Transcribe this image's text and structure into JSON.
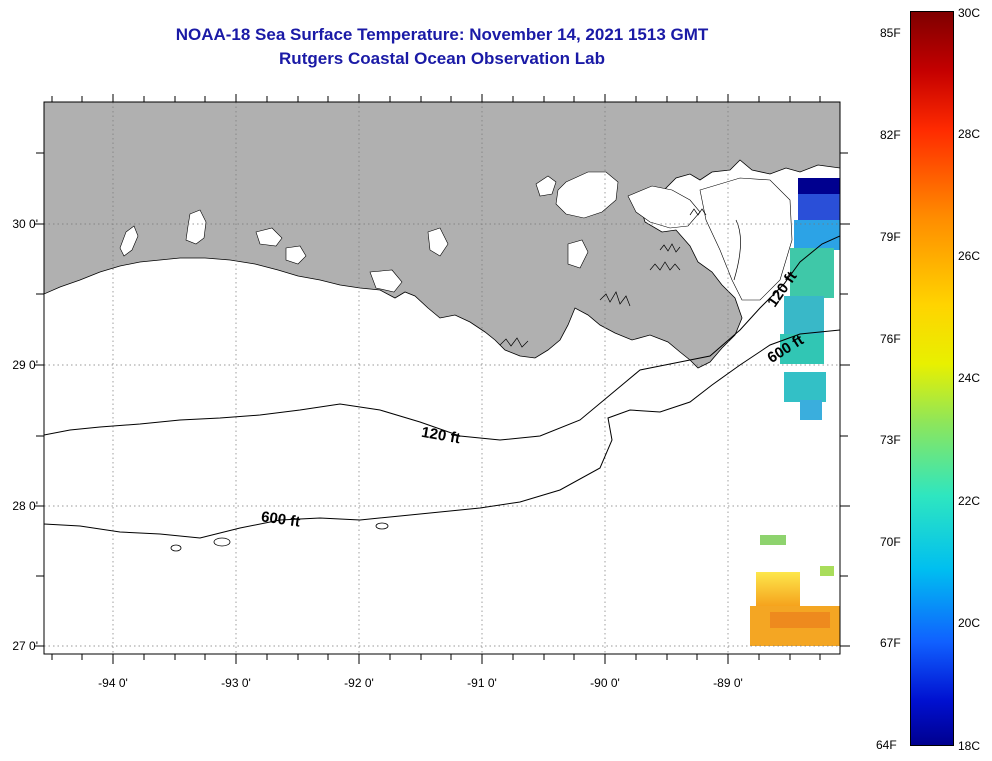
{
  "title": {
    "line1": "NOAA-18 Sea Surface Temperature:  November 14, 2021 1513 GMT",
    "line2": "Rutgers Coastal Ocean Observation Lab"
  },
  "axes": {
    "lat_labels": [
      "30 0'",
      "29 0'",
      "28 0'",
      "27 0'"
    ],
    "lon_labels": [
      "-94 0'",
      "-93 0'",
      "-92 0'",
      "-91 0'",
      "-90 0'",
      "-89 0'"
    ]
  },
  "contours": {
    "label_120_west": "120 ft",
    "label_120_east": "120 ft",
    "label_600_west": "600 ft",
    "label_600_east": "600 ft"
  },
  "colorbar": {
    "fahrenheit_labels": [
      "85F",
      "82F",
      "79F",
      "76F",
      "73F",
      "70F",
      "67F",
      "64F"
    ],
    "celsius_labels": [
      "30C",
      "28C",
      "26C",
      "24C",
      "22C",
      "20C",
      "18C"
    ],
    "range_celsius": [
      18,
      30
    ]
  },
  "colors": {
    "title": "#1a1aa6",
    "land": "#b0b0b0",
    "cold": "#00008f",
    "warm": "#7f0000"
  }
}
